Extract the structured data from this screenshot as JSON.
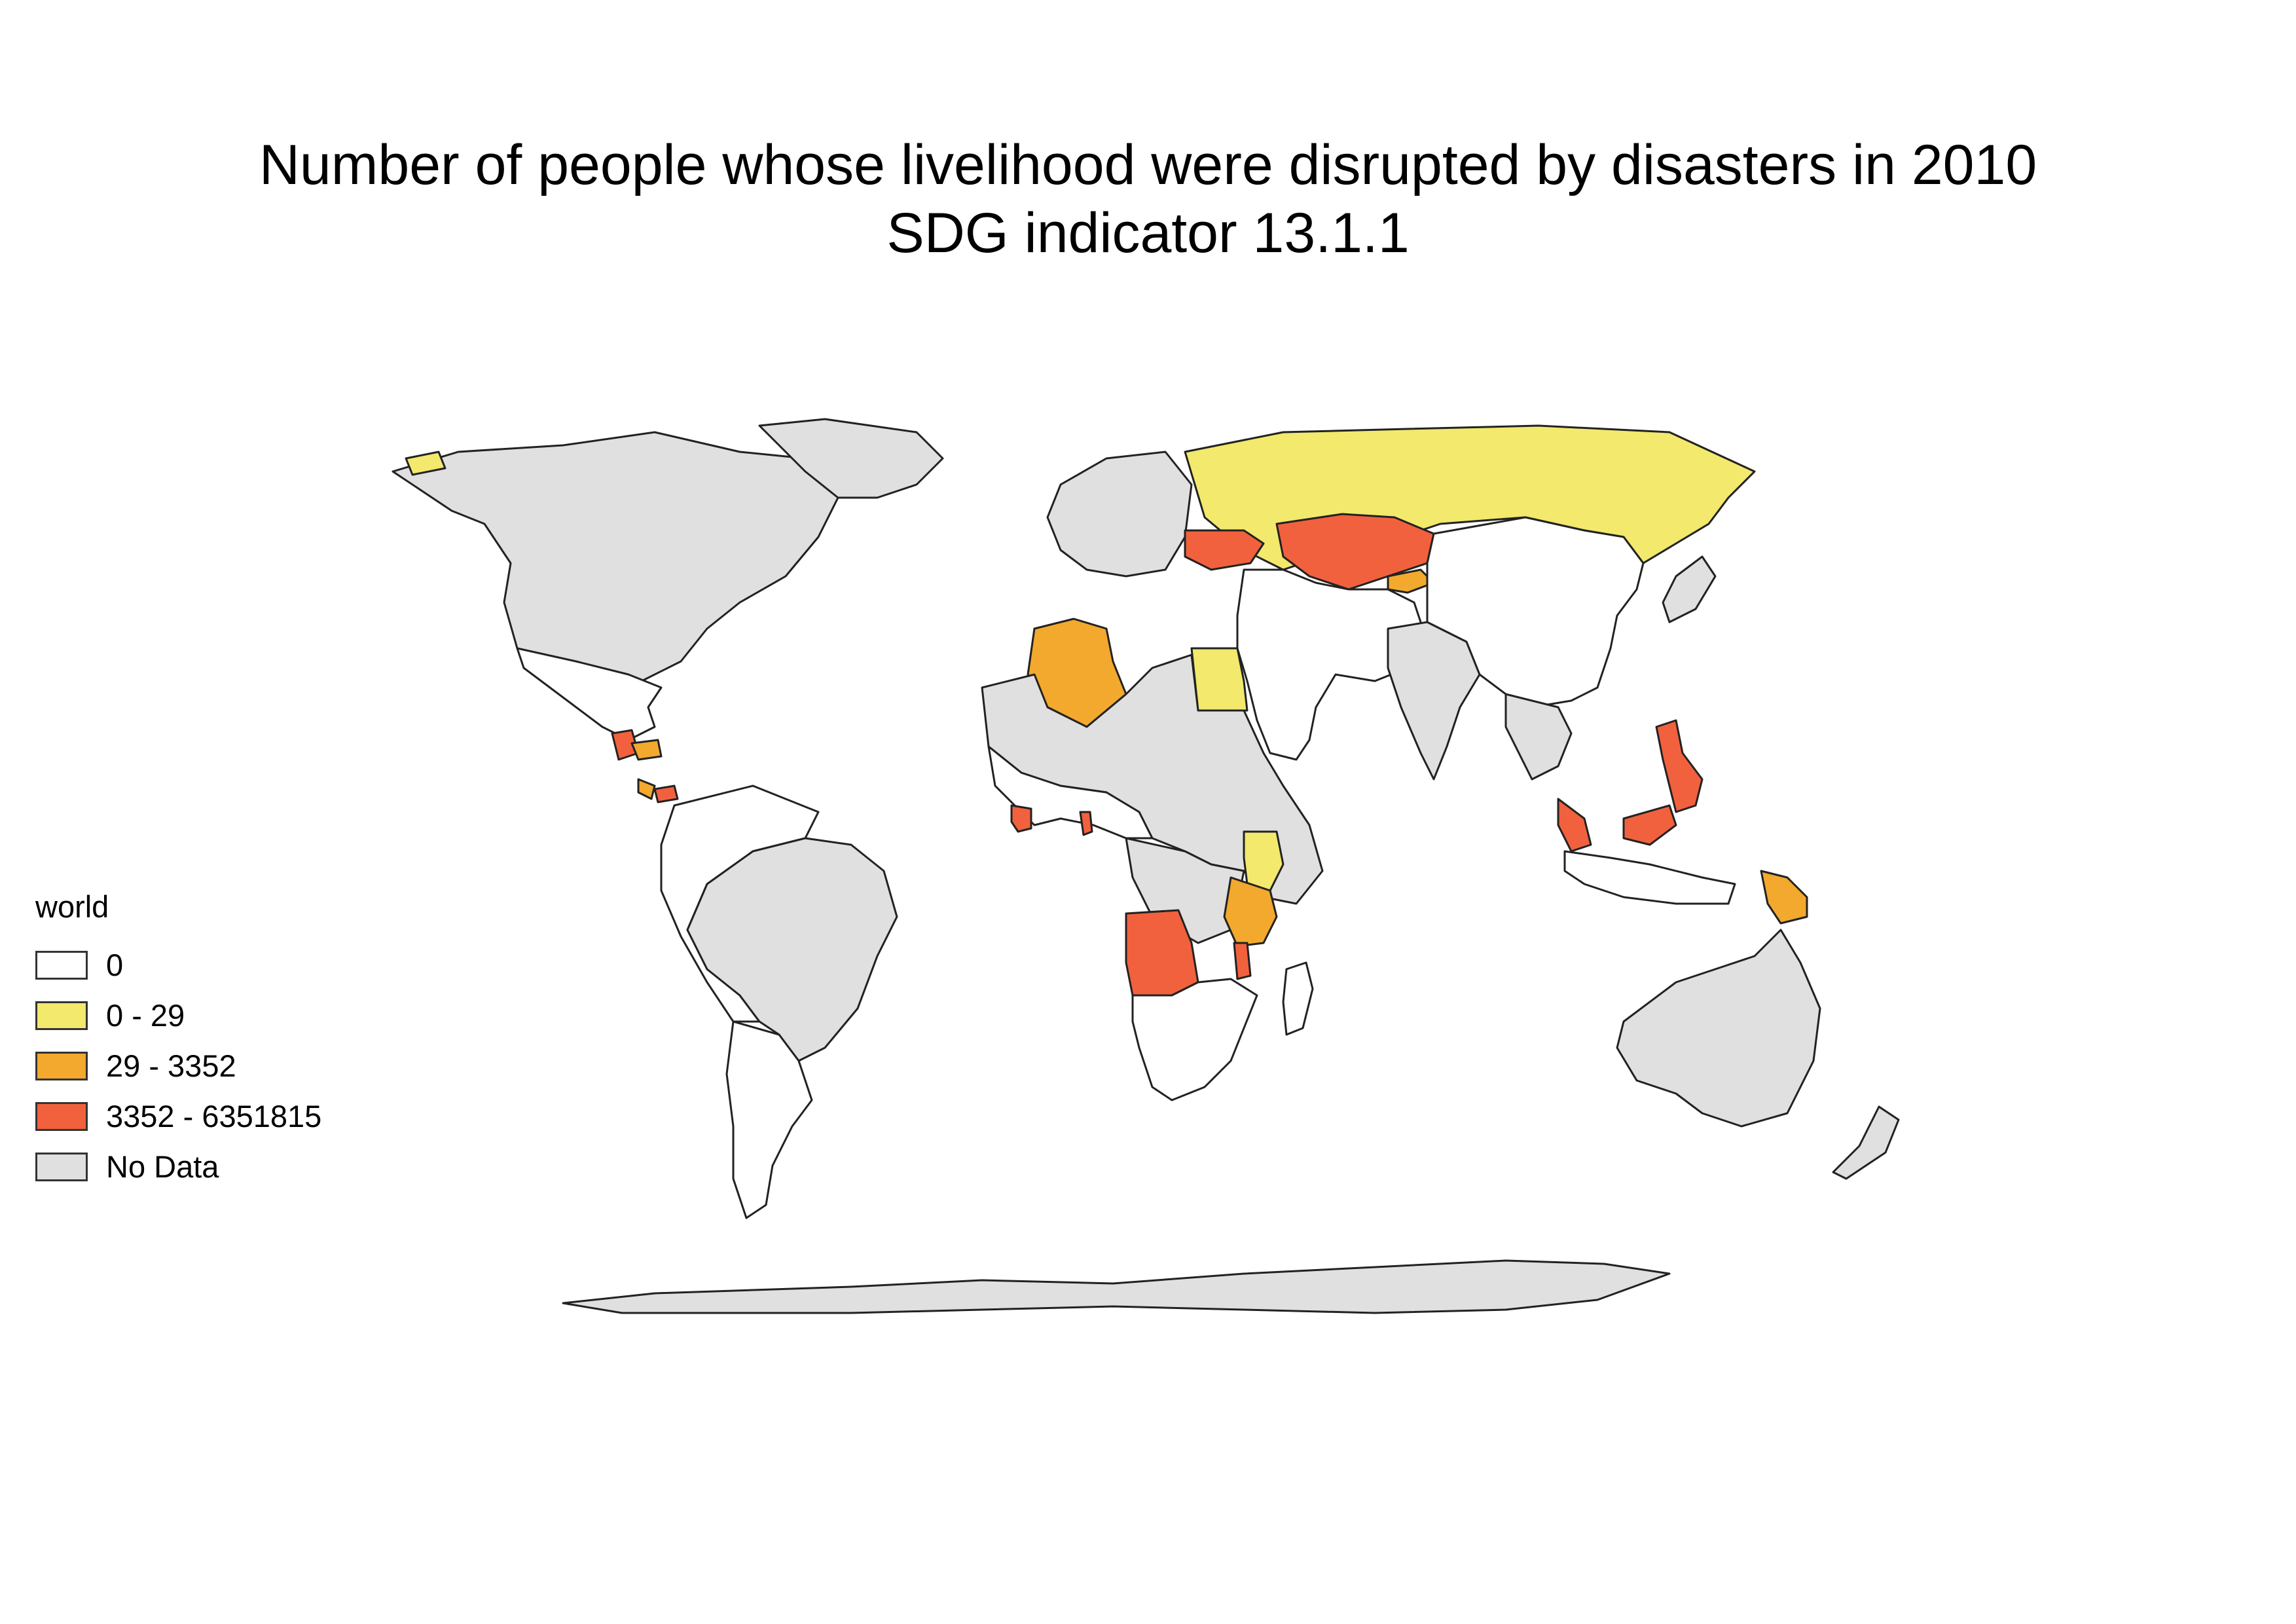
{
  "title": {
    "line1": "Number of people whose livelihood were disrupted by disasters in 2010",
    "line2": "SDG indicator 13.1.1"
  },
  "legend": {
    "title": "world",
    "items": [
      {
        "label": "0",
        "color": "#ffffff"
      },
      {
        "label": "0 - 29",
        "color": "#f2e96d"
      },
      {
        "label": "29 - 3352",
        "color": "#f2a92d"
      },
      {
        "label": "3352 - 6351815",
        "color": "#f2613d"
      },
      {
        "label": "No Data",
        "color": "#e0e0e0"
      }
    ]
  },
  "map": {
    "projection": "world",
    "outline_color": "#222222",
    "regions": [
      {
        "name": "North America",
        "category": "No Data"
      },
      {
        "name": "Alaska",
        "category": "0 - 29"
      },
      {
        "name": "Greenland",
        "category": "No Data"
      },
      {
        "name": "Mexico",
        "category": "0"
      },
      {
        "name": "Guatemala",
        "category": "3352 - 6351815"
      },
      {
        "name": "Honduras",
        "category": "29 - 3352"
      },
      {
        "name": "Costa Rica",
        "category": "29 - 3352"
      },
      {
        "name": "Panama",
        "category": "3352 - 6351815"
      },
      {
        "name": "Northern South America",
        "category": "0"
      },
      {
        "name": "Brazil",
        "category": "No Data"
      },
      {
        "name": "Southern South America",
        "category": "0"
      },
      {
        "name": "Western Europe",
        "category": "No Data"
      },
      {
        "name": "Russia",
        "category": "0 - 29"
      },
      {
        "name": "Ukraine",
        "category": "3352 - 6351815"
      },
      {
        "name": "Kazakhstan",
        "category": "3352 - 6351815"
      },
      {
        "name": "Kyrgyzstan",
        "category": "29 - 3352"
      },
      {
        "name": "Algeria",
        "category": "29 - 3352"
      },
      {
        "name": "Egypt",
        "category": "0 - 29"
      },
      {
        "name": "North Africa",
        "category": "No Data"
      },
      {
        "name": "West Africa",
        "category": "0"
      },
      {
        "name": "Sierra Leone",
        "category": "3352 - 6351815"
      },
      {
        "name": "Togo",
        "category": "3352 - 6351815"
      },
      {
        "name": "Central Africa",
        "category": "No Data"
      },
      {
        "name": "Kenya",
        "category": "0 - 29"
      },
      {
        "name": "Tanzania",
        "category": "29 - 3352"
      },
      {
        "name": "Angola",
        "category": "3352 - 6351815"
      },
      {
        "name": "Malawi",
        "category": "3352 - 6351815"
      },
      {
        "name": "Southern Africa",
        "category": "0"
      },
      {
        "name": "Madagascar",
        "category": "0"
      },
      {
        "name": "Middle East",
        "category": "0"
      },
      {
        "name": "India",
        "category": "No Data"
      },
      {
        "name": "China and Mongolia",
        "category": "0"
      },
      {
        "name": "Japan",
        "category": "No Data"
      },
      {
        "name": "Southeast Asia",
        "category": "No Data"
      },
      {
        "name": "Philippines",
        "category": "3352 - 6351815"
      },
      {
        "name": "Malaysia",
        "category": "3352 - 6351815"
      },
      {
        "name": "Indonesia",
        "category": "0"
      },
      {
        "name": "Papua New Guinea",
        "category": "29 - 3352"
      },
      {
        "name": "Australia",
        "category": "No Data"
      },
      {
        "name": "New Zealand",
        "category": "No Data"
      },
      {
        "name": "Antarctica",
        "category": "No Data"
      }
    ]
  }
}
